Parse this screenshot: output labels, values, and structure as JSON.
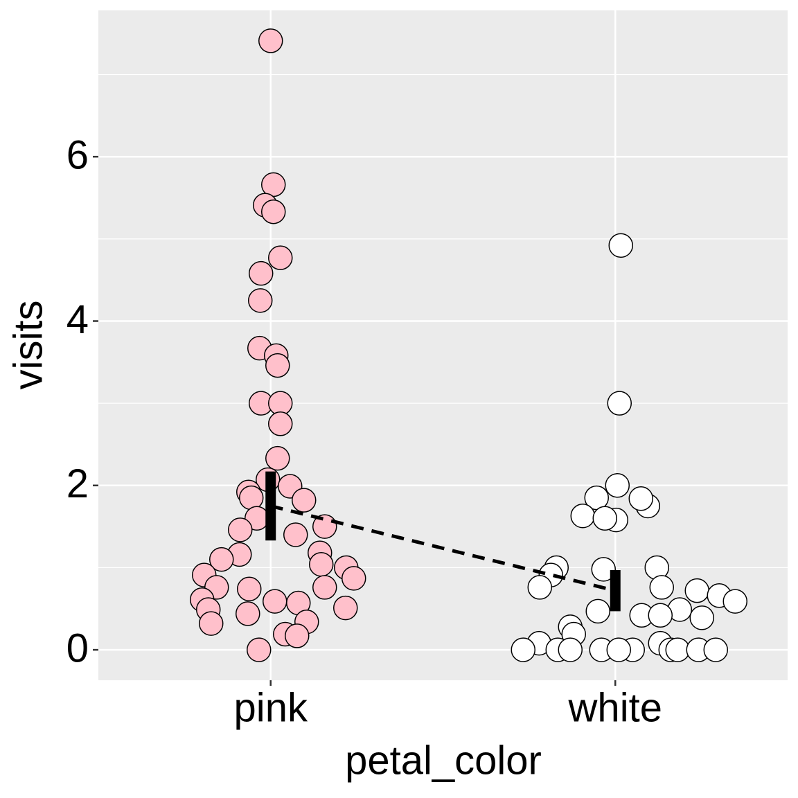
{
  "chart_data": {
    "type": "strip",
    "x_label": "petal_color",
    "y_label": "visits",
    "categories": [
      "pink",
      "white"
    ],
    "colors": [
      "#ffc0cb",
      "#ffffff"
    ],
    "values": [
      [
        7.41,
        5.66,
        5.41,
        5.33,
        4.77,
        4.58,
        4.25,
        3.67,
        3.58,
        3.46,
        3.0,
        3.0,
        2.75,
        2.33,
        2.07,
        1.99,
        1.92,
        1.85,
        1.82,
        1.6,
        1.46,
        1.5,
        1.4,
        1.16,
        1.18,
        1.1,
        1.04,
        1.0,
        0.91,
        0.87,
        0.76,
        0.74,
        0.76,
        0.61,
        0.59,
        0.57,
        0.51,
        0.49,
        0.44,
        0.34,
        0.32,
        0.19,
        0.17,
        0
      ],
      [
        4.92,
        3.0,
        2.0,
        1.85,
        1.75,
        1.84,
        1.63,
        1.58,
        1.6,
        1.0,
        0.98,
        1.0,
        0.91,
        0.76,
        0.76,
        0.72,
        0.66,
        0.59,
        0.49,
        0.47,
        0.42,
        0.42,
        0.39,
        0.28,
        0.19,
        0.08,
        0.08,
        0,
        0,
        0,
        0,
        0,
        0,
        0,
        0,
        0,
        0
      ]
    ],
    "means": [
      1.75,
      0.72
    ],
    "errors": [
      0.42,
      0.25
    ],
    "ylim": [
      -0.37,
      7.78
    ],
    "yticks": [
      0,
      2,
      4,
      6
    ],
    "minor_yticks": [
      1,
      3,
      5,
      7
    ],
    "grid": true
  }
}
